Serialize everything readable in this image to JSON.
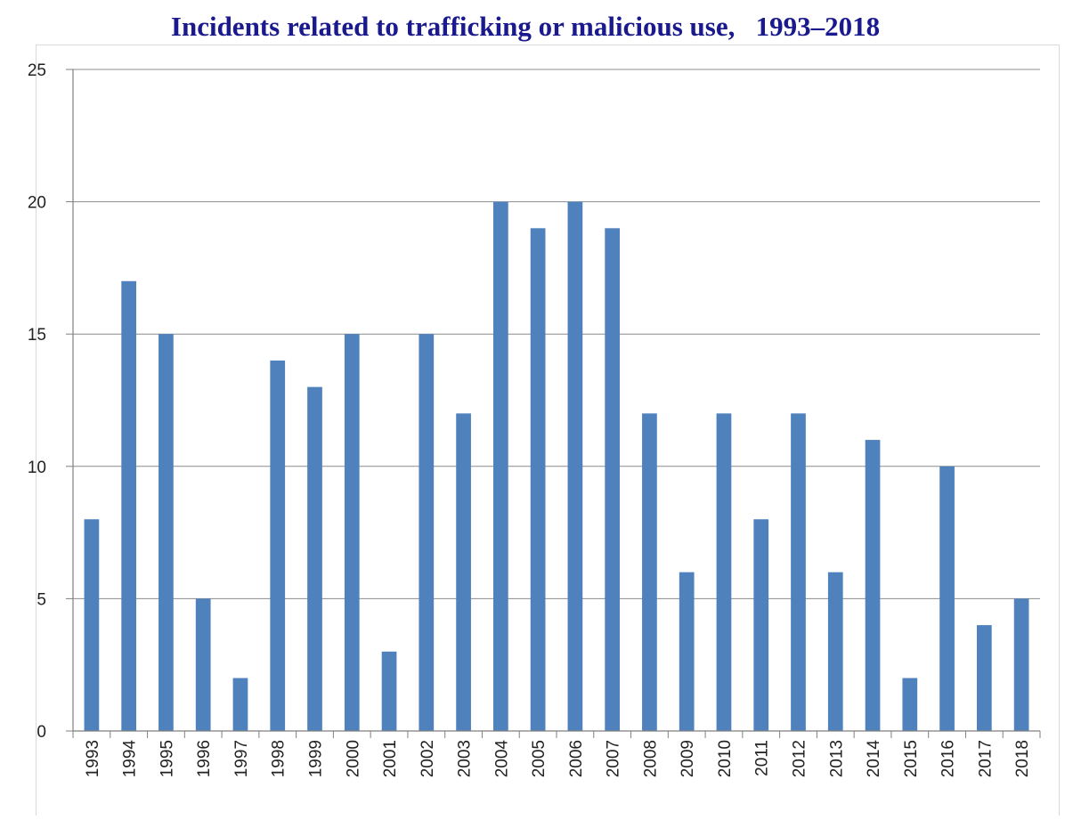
{
  "chart_data": {
    "type": "bar",
    "title": "Incidents related to trafficking or malicious use,   1993–2018",
    "xlabel": "",
    "ylabel": "",
    "ylim": [
      0,
      25
    ],
    "yticks": [
      0,
      5,
      10,
      15,
      20,
      25
    ],
    "grid": true,
    "bar_color": "#4f81bd",
    "categories": [
      "1993",
      "1994",
      "1995",
      "1996",
      "1997",
      "1998",
      "1999",
      "2000",
      "2001",
      "2002",
      "2003",
      "2004",
      "2005",
      "2006",
      "2007",
      "2008",
      "2009",
      "2010",
      "2011",
      "2012",
      "2013",
      "2014",
      "2015",
      "2016",
      "2017",
      "2018"
    ],
    "values": [
      8,
      17,
      15,
      5,
      2,
      14,
      13,
      15,
      3,
      15,
      12,
      20,
      19,
      20,
      19,
      12,
      6,
      12,
      8,
      12,
      6,
      11,
      2,
      10,
      4,
      5
    ]
  }
}
